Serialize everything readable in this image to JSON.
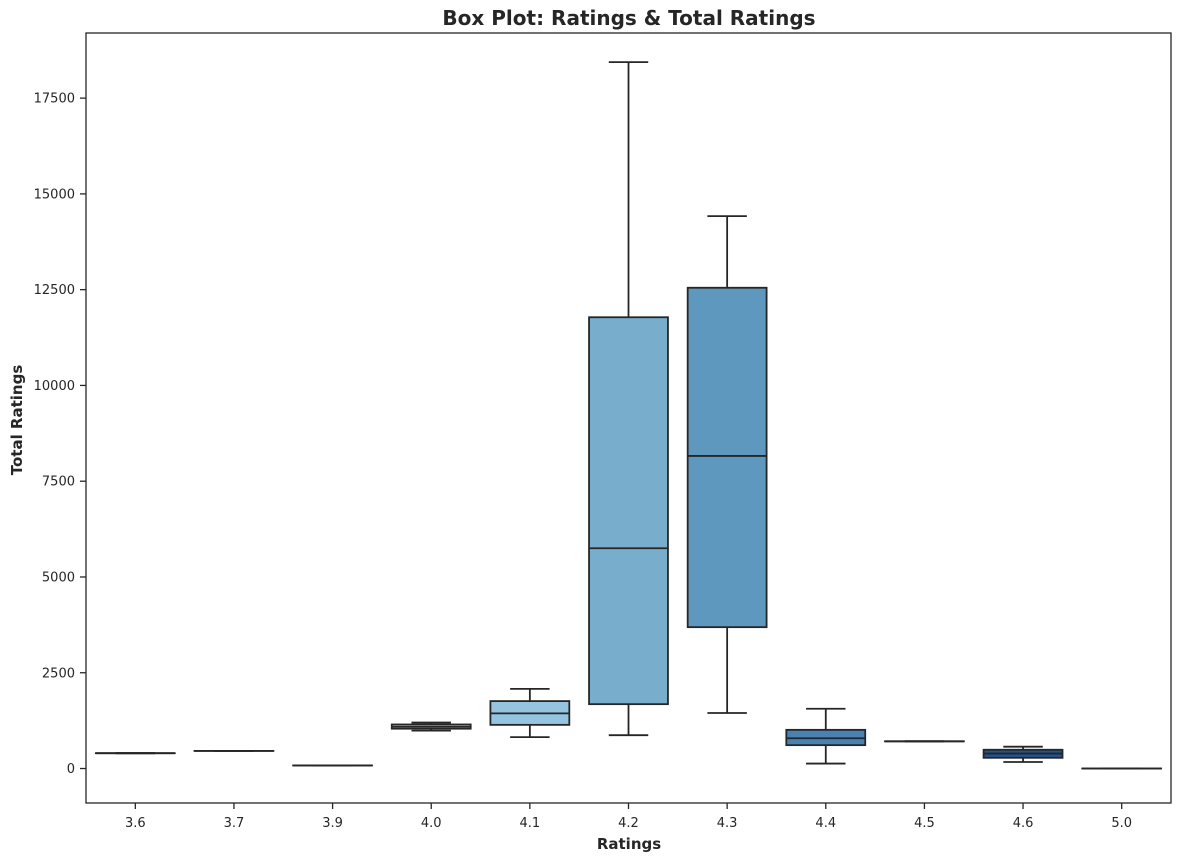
{
  "chart_data": {
    "type": "box",
    "title": "Box Plot: Ratings & Total Ratings",
    "xlabel": "Ratings",
    "ylabel": "Total Ratings",
    "ylim": [
      -900,
      19200
    ],
    "yticks": [
      0,
      2500,
      5000,
      7500,
      10000,
      12500,
      15000,
      17500
    ],
    "ytick_labels": [
      "0",
      "2500",
      "5000",
      "7500",
      "10000",
      "12500",
      "15000",
      "17500"
    ],
    "categories": [
      "3.6",
      "3.7",
      "3.9",
      "4.0",
      "4.1",
      "4.2",
      "4.3",
      "4.4",
      "4.5",
      "4.6",
      "5.0"
    ],
    "boxes": [
      {
        "category": "3.6",
        "whisker_low": 400,
        "q1": 400,
        "median": 400,
        "q3": 400,
        "whisker_high": 400,
        "color": "#deebf7"
      },
      {
        "category": "3.7",
        "whisker_low": 460,
        "q1": 460,
        "median": 460,
        "q3": 460,
        "whisker_high": 460,
        "color": "#d2e3f3"
      },
      {
        "category": "3.9",
        "whisker_low": 80,
        "q1": 80,
        "median": 80,
        "q3": 80,
        "whisker_high": 80,
        "color": "#c6dbef"
      },
      {
        "category": "4.0",
        "whisker_low": 990,
        "q1": 1040,
        "median": 1090,
        "q3": 1150,
        "whisker_high": 1200,
        "color": "#b0d2e7"
      },
      {
        "category": "4.1",
        "whisker_low": 820,
        "q1": 1140,
        "median": 1440,
        "q3": 1760,
        "whisker_high": 2080,
        "color": "#94c4df"
      },
      {
        "category": "4.2",
        "whisker_low": 870,
        "q1": 1680,
        "median": 5750,
        "q3": 11780,
        "whisker_high": 18440,
        "color": "#79adcc"
      },
      {
        "category": "4.3",
        "whisker_low": 1450,
        "q1": 3690,
        "median": 8160,
        "q3": 12550,
        "whisker_high": 14420,
        "color": "#5f98be"
      },
      {
        "category": "4.4",
        "whisker_low": 130,
        "q1": 610,
        "median": 790,
        "q3": 1010,
        "whisker_high": 1560,
        "color": "#4682b4"
      },
      {
        "category": "4.5",
        "whisker_low": 710,
        "q1": 710,
        "median": 710,
        "q3": 710,
        "whisker_high": 710,
        "color": "#2f6ba3"
      },
      {
        "category": "4.6",
        "whisker_low": 170,
        "q1": 280,
        "median": 390,
        "q3": 490,
        "whisker_high": 570,
        "color": "#205591"
      },
      {
        "category": "5.0",
        "whisker_low": 0,
        "q1": 0,
        "median": 0,
        "q3": 0,
        "whisker_high": 0,
        "color": "#08306b"
      }
    ],
    "grid": false,
    "legend": "none"
  }
}
